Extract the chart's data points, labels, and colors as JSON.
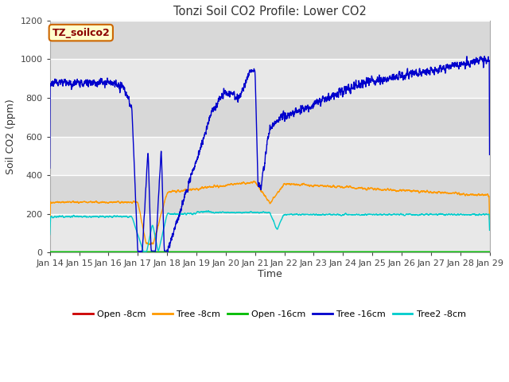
{
  "title": "Tonzi Soil CO2 Profile: Lower CO2",
  "xlabel": "Time",
  "ylabel": "Soil CO2 (ppm)",
  "ylim": [
    0,
    1200
  ],
  "yticks": [
    0,
    200,
    400,
    600,
    800,
    1000,
    1200
  ],
  "date_labels": [
    "Jan 14",
    "Jan 15",
    "Jan 16",
    "Jan 17",
    "Jan 18",
    "Jan 19",
    "Jan 20",
    "Jan 21",
    "Jan 22",
    "Jan 23",
    "Jan 24",
    "Jan 25",
    "Jan 26",
    "Jan 27",
    "Jan 28",
    "Jan 29"
  ],
  "colors": {
    "open_8cm": "#cc0000",
    "tree_8cm": "#ff9900",
    "open_16cm": "#00bb00",
    "tree_16cm": "#0000cc",
    "tree2_8cm": "#00cccc"
  },
  "legend_label": "TZ_soilco2",
  "bg_color": "#e8e8e8",
  "plot_bg_light": "#eeeeee",
  "plot_bg_dark": "#dddddd",
  "fig_bg": "#ffffff",
  "grid_color": "#ffffff",
  "band_colors": [
    "#e8e8e8",
    "#d8d8d8"
  ]
}
